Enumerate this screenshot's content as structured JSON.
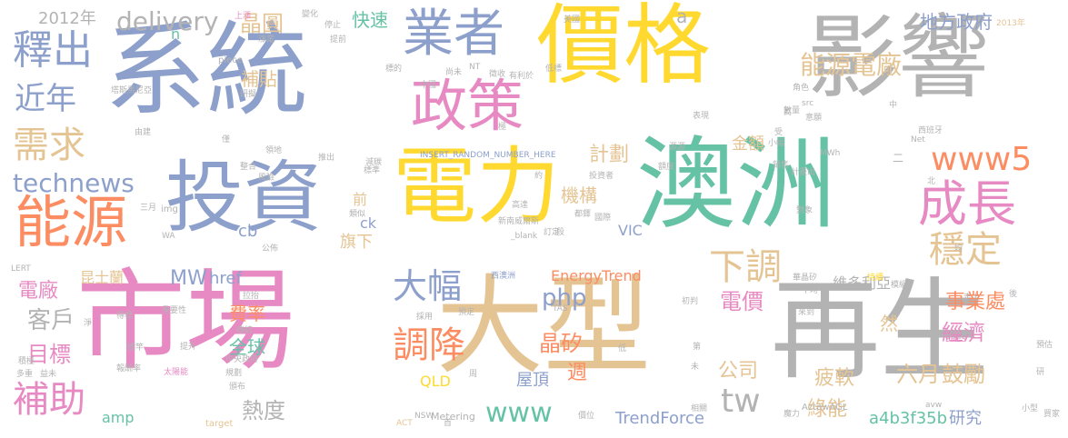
{
  "palette": {
    "teal": "#66c2a5",
    "orange": "#fc8d62",
    "blue": "#8da0cb",
    "pink": "#e78ac3",
    "green": "#a6d854",
    "yellow": "#ffd92f",
    "tan": "#e5c494",
    "gray": "#b3b3b3"
  },
  "words": [
    {
      "text": "系統",
      "color": "#8da0cb"
    },
    {
      "text": "價格",
      "color": "#ffd92f"
    },
    {
      "text": "影響",
      "color": "#b3b3b3"
    },
    {
      "text": "澳洲",
      "color": "#66c2a5"
    },
    {
      "text": "電力",
      "color": "#ffd92f"
    },
    {
      "text": "投資",
      "color": "#8da0cb"
    },
    {
      "text": "市場",
      "color": "#e78ac3"
    },
    {
      "text": "大型",
      "color": "#e5c494"
    },
    {
      "text": "再生",
      "color": "#b3b3b3"
    },
    {
      "text": "業者",
      "color": "#8da0cb"
    },
    {
      "text": "政策",
      "color": "#e78ac3"
    },
    {
      "text": "能源",
      "color": "#fc8d62"
    },
    {
      "text": "釋出",
      "color": "#8da0cb"
    },
    {
      "text": "近年",
      "color": "#8da0cb"
    },
    {
      "text": "需求",
      "color": "#e5c494"
    },
    {
      "text": "technews",
      "color": "#8da0cb"
    },
    {
      "text": "成長",
      "color": "#e78ac3"
    },
    {
      "text": "www5",
      "color": "#fc8d62"
    },
    {
      "text": "穩定",
      "color": "#e5c494"
    },
    {
      "text": "能源電廠",
      "color": "#e5c494"
    },
    {
      "text": "地方政府",
      "color": "#8da0cb"
    },
    {
      "text": "delivery",
      "color": "#b3b3b3"
    },
    {
      "text": "晶圓",
      "color": "#e5c494"
    },
    {
      "text": "快速",
      "color": "#66c2a5"
    },
    {
      "text": "2012年",
      "color": "#b3b3b3"
    },
    {
      "text": "補貼",
      "color": "#e5c494"
    },
    {
      "text": "計劃",
      "color": "#e5c494"
    },
    {
      "text": "機構",
      "color": "#e5c494"
    },
    {
      "text": "金額",
      "color": "#e5c494"
    },
    {
      "text": "大幅",
      "color": "#8da0cb"
    },
    {
      "text": "調降",
      "color": "#fc8d62"
    },
    {
      "text": "下調",
      "color": "#e5c494"
    },
    {
      "text": "電價",
      "color": "#e78ac3"
    },
    {
      "text": "事業處",
      "color": "#fc8d62"
    },
    {
      "text": "補助",
      "color": "#e78ac3"
    },
    {
      "text": "客戶",
      "color": "#b3b3b3"
    },
    {
      "text": "目標",
      "color": "#e78ac3"
    },
    {
      "text": "電廠",
      "color": "#e78ac3"
    },
    {
      "text": "MW",
      "color": "#8da0cb"
    },
    {
      "text": "href",
      "color": "#8da0cb"
    },
    {
      "text": "php",
      "color": "#8da0cb"
    },
    {
      "text": "www",
      "color": "#66c2a5"
    },
    {
      "text": "tw",
      "color": "#b3b3b3"
    },
    {
      "text": "TrendForce",
      "color": "#8da0cb"
    },
    {
      "text": "晶矽",
      "color": "#fc8d62"
    },
    {
      "text": "公司",
      "color": "#e5c494"
    },
    {
      "text": "經濟",
      "color": "#e78ac3"
    },
    {
      "text": "鼓勵",
      "color": "#e5c494"
    },
    {
      "text": "六月",
      "color": "#e5c494"
    },
    {
      "text": "綠能",
      "color": "#e5c494"
    },
    {
      "text": "疲軟",
      "color": "#e5c494"
    },
    {
      "text": "a4b3f35b",
      "color": "#66c2a5"
    },
    {
      "text": "研究",
      "color": "#8da0cb"
    },
    {
      "text": "熱度",
      "color": "#b3b3b3"
    },
    {
      "text": "全球",
      "color": "#66c2a5"
    },
    {
      "text": "費率",
      "color": "#fc8d62"
    },
    {
      "text": "維多利亞",
      "color": "#b3b3b3"
    },
    {
      "text": "EnergyTrend",
      "color": "#fc8d62"
    },
    {
      "text": "屋頂",
      "color": "#8da0cb"
    },
    {
      "text": "週",
      "color": "#fc8d62"
    },
    {
      "text": "QLD",
      "color": "#ffd92f"
    },
    {
      "text": "VIC",
      "color": "#8da0cb"
    },
    {
      "text": "昆士蘭",
      "color": "#e5c494"
    },
    {
      "text": "旗下",
      "color": "#e5c494"
    },
    {
      "text": "cb",
      "color": "#8da0cb"
    },
    {
      "text": "ck",
      "color": "#8da0cb"
    },
    {
      "text": "前",
      "color": "#e5c494"
    },
    {
      "text": "amp",
      "color": "#66c2a5"
    },
    {
      "text": "然",
      "color": "#e5c494"
    },
    {
      "text": "n",
      "color": "#66c2a5"
    },
    {
      "text": "a",
      "color": "#b3b3b3"
    },
    {
      "text": "img",
      "color": "#b3b3b3"
    },
    {
      "text": "Metering",
      "color": "#b3b3b3"
    },
    {
      "text": "ActewAGL",
      "color": "#b3b3b3"
    },
    {
      "text": "piece",
      "color": "#b3b3b3"
    },
    {
      "text": "SRES",
      "color": "#e78ac3"
    },
    {
      "text": "target",
      "color": "#e5c494"
    },
    {
      "text": "INSERT_RANDOM_NUMBER_HERE",
      "color": "#8da0cb"
    },
    {
      "text": "2013年",
      "color": "#e5c494"
    },
    {
      "text": "小型",
      "color": "#b3b3b3"
    },
    {
      "text": "買家",
      "color": "#b3b3b3"
    },
    {
      "text": "西澳洲",
      "color": "#8da0cb"
    },
    {
      "text": "新南威爾斯",
      "color": "#b3b3b3"
    },
    {
      "text": "MWh",
      "color": "#b3b3b3"
    },
    {
      "text": "Net",
      "color": "#b3b3b3"
    },
    {
      "text": "avw",
      "color": "#b3b3b3"
    },
    {
      "text": "美國",
      "color": "#b3b3b3"
    },
    {
      "text": "LERT",
      "color": "#b3b3b3"
    },
    {
      "text": "TAS",
      "color": "#b3b3b3"
    },
    {
      "text": "NSW",
      "color": "#b3b3b3"
    },
    {
      "text": "ACT",
      "color": "#e5c494"
    },
    {
      "text": "_blank",
      "color": "#b3b3b3"
    },
    {
      "text": "塔斯馬尼亞",
      "color": "#b3b3b3"
    },
    {
      "text": "太陽能",
      "color": "#e78ac3"
    },
    {
      "text": "中央政府",
      "color": "#b3b3b3"
    },
    {
      "text": "報酬率",
      "color": "#b3b3b3"
    },
    {
      "text": "由建",
      "color": "#b3b3b3"
    },
    {
      "text": "風險",
      "color": "#b3b3b3"
    },
    {
      "text": "整合",
      "color": "#b3b3b3"
    },
    {
      "text": "標準",
      "color": "#b3b3b3"
    },
    {
      "text": "減碳",
      "color": "#b3b3b3"
    },
    {
      "text": "投資者",
      "color": "#b3b3b3"
    },
    {
      "text": "高達",
      "color": "#b3b3b3"
    },
    {
      "text": "都鐸",
      "color": "#b3b3b3"
    },
    {
      "text": "國際",
      "color": "#b3b3b3"
    },
    {
      "text": "訂定",
      "color": "#b3b3b3"
    },
    {
      "text": "採用",
      "color": "#b3b3b3"
    },
    {
      "text": "預估",
      "color": "#b3b3b3"
    },
    {
      "text": "走上",
      "color": "#b3b3b3"
    },
    {
      "text": "平均",
      "color": "#b3b3b3"
    },
    {
      "text": "華晶矽",
      "color": "#b3b3b3"
    },
    {
      "text": "對象",
      "color": "#b3b3b3"
    },
    {
      "text": "角色",
      "color": "#b3b3b3"
    },
    {
      "text": "數量",
      "color": "#b3b3b3"
    },
    {
      "text": "意願",
      "color": "#b3b3b3"
    },
    {
      "text": "西班牙",
      "color": "#b3b3b3"
    },
    {
      "text": "持續",
      "color": "#ffd92f"
    },
    {
      "text": "模組",
      "color": "#b3b3b3"
    },
    {
      "text": "初判",
      "color": "#b3b3b3"
    },
    {
      "text": "相關",
      "color": "#b3b3b3"
    },
    {
      "text": "價位",
      "color": "#b3b3b3"
    },
    {
      "text": "魔力",
      "color": "#b3b3b3"
    },
    {
      "text": "預定",
      "color": "#b3b3b3"
    },
    {
      "text": "傳統",
      "color": "#b3b3b3"
    },
    {
      "text": "規劃",
      "color": "#b3b3b3"
    },
    {
      "text": "得標",
      "color": "#b3b3b3"
    },
    {
      "text": "重要性",
      "color": "#b3b3b3"
    },
    {
      "text": "公佈",
      "color": "#b3b3b3"
    },
    {
      "text": "拉抬",
      "color": "#b3b3b3"
    },
    {
      "text": "研擬",
      "color": "#b3b3b3"
    },
    {
      "text": "頒布",
      "color": "#b3b3b3"
    },
    {
      "text": "標竿",
      "color": "#b3b3b3"
    },
    {
      "text": "提升",
      "color": "#b3b3b3"
    },
    {
      "text": "多重",
      "color": "#b3b3b3"
    },
    {
      "text": "益未",
      "color": "#b3b3b3"
    },
    {
      "text": "積極",
      "color": "#b3b3b3"
    },
    {
      "text": "淨",
      "color": "#b3b3b3"
    },
    {
      "text": "首",
      "color": "#b3b3b3"
    },
    {
      "text": "周",
      "color": "#b3b3b3"
    },
    {
      "text": "太",
      "color": "#b3b3b3"
    },
    {
      "text": "二",
      "color": "#b3b3b3"
    },
    {
      "text": "中",
      "color": "#b3b3b3"
    },
    {
      "text": "北",
      "color": "#b3b3b3"
    },
    {
      "text": "受",
      "color": "#b3b3b3"
    },
    {
      "text": "上漲",
      "color": "#e78ac3"
    },
    {
      "text": "漲電",
      "color": "#b3b3b3"
    },
    {
      "text": "變化",
      "color": "#b3b3b3"
    },
    {
      "text": "停止",
      "color": "#b3b3b3"
    },
    {
      "text": "提前",
      "color": "#b3b3b3"
    },
    {
      "text": "標的",
      "color": "#b3b3b3"
    },
    {
      "text": "尚未",
      "color": "#b3b3b3"
    },
    {
      "text": "徵收",
      "color": "#b3b3b3"
    },
    {
      "text": "有利於",
      "color": "#b3b3b3"
    },
    {
      "text": "低標",
      "color": "#b3b3b3"
    },
    {
      "text": "表現",
      "color": "#b3b3b3"
    },
    {
      "text": "小幅",
      "color": "#b3b3b3"
    },
    {
      "text": "銷售",
      "color": "#b3b3b3"
    },
    {
      "text": "計畫出",
      "color": "#b3b3b3"
    },
    {
      "text": "來到",
      "color": "#b3b3b3"
    },
    {
      "text": "源源",
      "color": "#b3b3b3"
    },
    {
      "text": "額度",
      "color": "#b3b3b3"
    },
    {
      "text": "中國",
      "color": "#b3b3b3"
    },
    {
      "text": "NT",
      "color": "#b3b3b3"
    },
    {
      "text": "src",
      "color": "#b3b3b3"
    },
    {
      "text": "WA",
      "color": "#b3b3b3"
    },
    {
      "text": "三月",
      "color": "#b3b3b3"
    },
    {
      "text": "類似",
      "color": "#b3b3b3"
    },
    {
      "text": "僅",
      "color": "#b3b3b3"
    },
    {
      "text": "領地",
      "color": "#b3b3b3"
    },
    {
      "text": "推出",
      "color": "#b3b3b3"
    },
    {
      "text": "極",
      "color": "#b3b3b3"
    },
    {
      "text": "約",
      "color": "#b3b3b3"
    },
    {
      "text": "段",
      "color": "#b3b3b3"
    },
    {
      "text": "低",
      "color": "#b3b3b3"
    },
    {
      "text": "第",
      "color": "#b3b3b3"
    },
    {
      "text": "未",
      "color": "#b3b3b3"
    },
    {
      "text": "均",
      "color": "#b3b3b3"
    },
    {
      "text": "後",
      "color": "#b3b3b3"
    },
    {
      "text": "研",
      "color": "#b3b3b3"
    },
    {
      "text": "高",
      "color": "#b3b3b3"
    }
  ]
}
